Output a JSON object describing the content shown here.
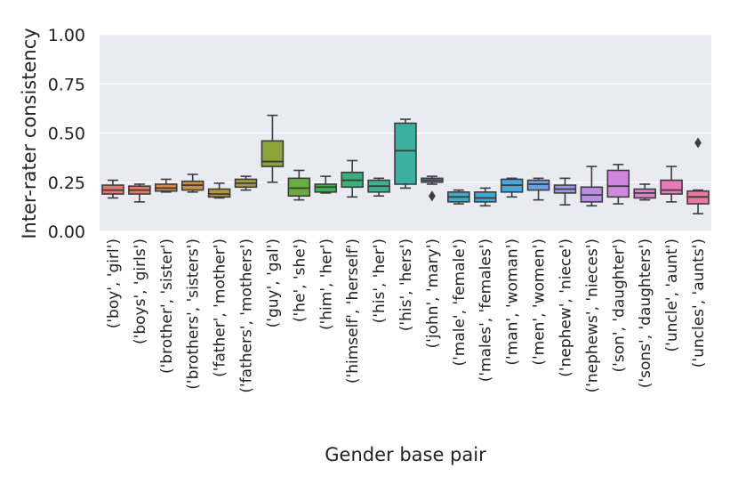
{
  "chart_data": {
    "type": "box",
    "title": "",
    "xlabel": "Gender base pair",
    "ylabel": "Inter-rater consistency",
    "ylim": [
      0.0,
      1.0
    ],
    "yticks": [
      "0.00",
      "0.25",
      "0.50",
      "0.75",
      "1.00"
    ],
    "grid": true,
    "categories": [
      "('boy', 'girl')",
      "('boys', 'girls')",
      "('brother', 'sister')",
      "('brothers', 'sisters')",
      "('father', 'mother')",
      "('fathers', 'mothers')",
      "('guy', 'gal')",
      "('he', 'she')",
      "('him', 'her')",
      "('himself', 'herself')",
      "('his', 'her')",
      "('his', 'hers')",
      "('john', 'mary')",
      "('male', 'female')",
      "('males', 'females')",
      "('man', 'woman')",
      "('men', 'women')",
      "('nephew', 'niece')",
      "('nephews', 'nieces')",
      "('son', 'daughter')",
      "('sons', 'daughters')",
      "('uncle', 'aunt')",
      "('uncles', 'aunts')"
    ],
    "boxes": [
      {
        "min": 0.17,
        "q1": 0.19,
        "median": 0.21,
        "q3": 0.235,
        "max": 0.26,
        "color": "#e8776f",
        "outliers": []
      },
      {
        "min": 0.15,
        "q1": 0.19,
        "median": 0.21,
        "q3": 0.23,
        "max": 0.24,
        "color": "#e47f5e",
        "outliers": []
      },
      {
        "min": 0.2,
        "q1": 0.205,
        "median": 0.22,
        "q3": 0.24,
        "max": 0.265,
        "color": "#d5894b",
        "outliers": []
      },
      {
        "min": 0.2,
        "q1": 0.21,
        "median": 0.235,
        "q3": 0.255,
        "max": 0.29,
        "color": "#c58f3e",
        "outliers": []
      },
      {
        "min": 0.17,
        "q1": 0.175,
        "median": 0.19,
        "q3": 0.215,
        "max": 0.245,
        "color": "#b3963c",
        "outliers": []
      },
      {
        "min": 0.21,
        "q1": 0.225,
        "median": 0.245,
        "q3": 0.265,
        "max": 0.28,
        "color": "#a39c3f",
        "outliers": []
      },
      {
        "min": 0.25,
        "q1": 0.33,
        "median": 0.355,
        "q3": 0.46,
        "max": 0.59,
        "color": "#8ba33a",
        "outliers": []
      },
      {
        "min": 0.16,
        "q1": 0.18,
        "median": 0.22,
        "q3": 0.27,
        "max": 0.31,
        "color": "#6aac40",
        "outliers": []
      },
      {
        "min": 0.195,
        "q1": 0.2,
        "median": 0.225,
        "q3": 0.24,
        "max": 0.28,
        "color": "#3fb052",
        "outliers": []
      },
      {
        "min": 0.175,
        "q1": 0.225,
        "median": 0.26,
        "q3": 0.3,
        "max": 0.36,
        "color": "#3bb076",
        "outliers": []
      },
      {
        "min": 0.18,
        "q1": 0.2,
        "median": 0.23,
        "q3": 0.26,
        "max": 0.27,
        "color": "#3cb08f",
        "outliers": []
      },
      {
        "min": 0.22,
        "q1": 0.24,
        "median": 0.41,
        "q3": 0.55,
        "max": 0.57,
        "color": "#3cb1a2",
        "outliers": []
      },
      {
        "min": 0.24,
        "q1": 0.25,
        "median": 0.26,
        "q3": 0.27,
        "max": 0.28,
        "color": "#3eafb2",
        "outliers": [
          0.18
        ]
      },
      {
        "min": 0.14,
        "q1": 0.15,
        "median": 0.175,
        "q3": 0.2,
        "max": 0.21,
        "color": "#3facc3",
        "outliers": []
      },
      {
        "min": 0.13,
        "q1": 0.15,
        "median": 0.17,
        "q3": 0.2,
        "max": 0.22,
        "color": "#40a9d0",
        "outliers": []
      },
      {
        "min": 0.175,
        "q1": 0.2,
        "median": 0.235,
        "q3": 0.265,
        "max": 0.27,
        "color": "#4aa5dc",
        "outliers": []
      },
      {
        "min": 0.16,
        "q1": 0.21,
        "median": 0.24,
        "q3": 0.26,
        "max": 0.27,
        "color": "#6f9fe4",
        "outliers": []
      },
      {
        "min": 0.135,
        "q1": 0.195,
        "median": 0.215,
        "q3": 0.235,
        "max": 0.27,
        "color": "#9a98e8",
        "outliers": []
      },
      {
        "min": 0.13,
        "q1": 0.15,
        "median": 0.185,
        "q3": 0.225,
        "max": 0.33,
        "color": "#b68fe5",
        "outliers": []
      },
      {
        "min": 0.14,
        "q1": 0.175,
        "median": 0.23,
        "q3": 0.31,
        "max": 0.34,
        "color": "#d087dd",
        "outliers": []
      },
      {
        "min": 0.16,
        "q1": 0.17,
        "median": 0.195,
        "q3": 0.215,
        "max": 0.24,
        "color": "#df7fcd",
        "outliers": []
      },
      {
        "min": 0.15,
        "q1": 0.19,
        "median": 0.21,
        "q3": 0.26,
        "max": 0.33,
        "color": "#e77ab9",
        "outliers": []
      },
      {
        "min": 0.09,
        "q1": 0.14,
        "median": 0.175,
        "q3": 0.205,
        "max": 0.21,
        "color": "#ec77a0",
        "outliers": [
          0.45
        ]
      }
    ]
  }
}
